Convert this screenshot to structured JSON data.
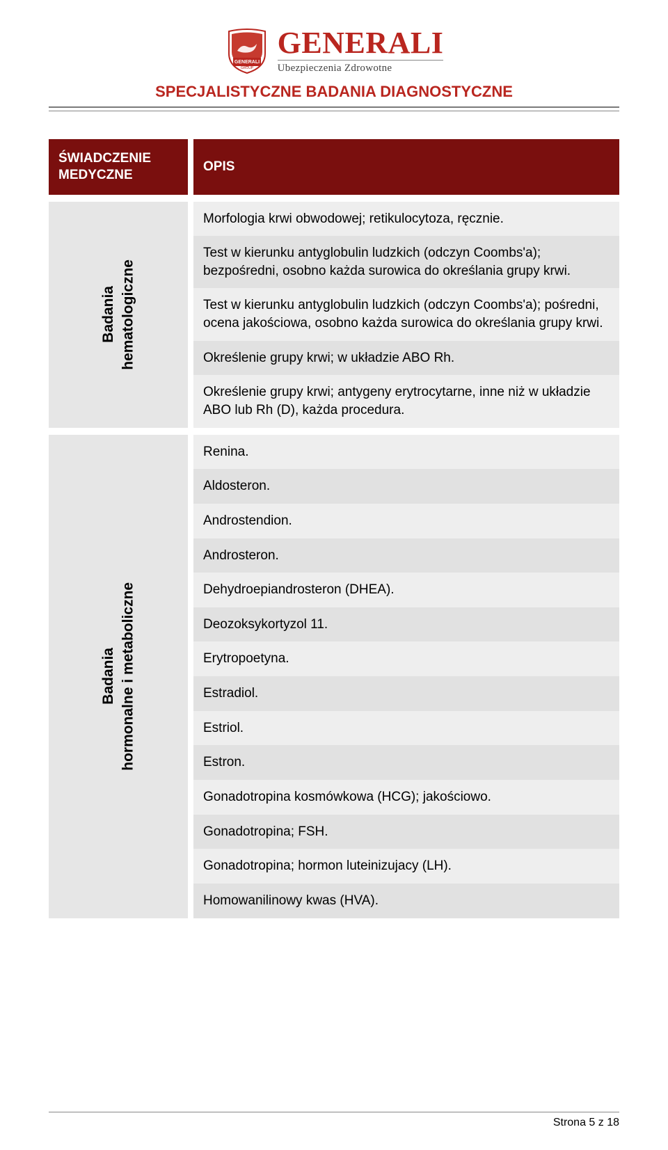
{
  "brand": {
    "wordmark": "GENERALI",
    "subtitle": "Ubezpieczenia Zdrowotne",
    "badge_text": "GENERALI",
    "badge_sub": "GROUP",
    "primary_color": "#b9261f",
    "header_bg": "#7a0f0e"
  },
  "doc_title": "SPECJALISTYCZNE BADANIA DIAGNOSTYCZNE",
  "headers": {
    "left": "ŚWIADCZENIE MEDYCZNE",
    "right": "OPIS"
  },
  "groups": [
    {
      "category": "Badania\nhematologiczne",
      "items": [
        "Morfologia krwi obwodowej; retikulocytoza, ręcznie.",
        "Test w kierunku antyglobulin ludzkich (odczyn Coombs'a); bezpośredni, osobno każda surowica do określania grupy krwi.",
        "Test w kierunku antyglobulin ludzkich (odczyn Coombs'a); pośredni, ocena jakościowa, osobno każda surowica do określania grupy krwi.",
        "Określenie grupy krwi; w układzie ABO Rh.",
        "Określenie grupy krwi; antygeny erytrocytarne, inne niż w układzie ABO lub Rh (D), każda procedura."
      ]
    },
    {
      "category": "Badania\nhormonalne i metaboliczne",
      "items": [
        "Renina.",
        "Aldosteron.",
        "Androstendion.",
        "Androsteron.",
        "Dehydroepiandrosteron (DHEA).",
        "Deozoksykortyzol 11.",
        "Erytropoetyna.",
        "Estradiol.",
        "Estriol.",
        "Estron.",
        "Gonadotropina kosmówkowa (HCG); jakościowo.",
        "Gonadotropina; FSH.",
        "Gonadotropina; hormon luteinizujacy (LH).",
        "Homowanilinowy kwas (HVA)."
      ]
    }
  ],
  "footer": {
    "text": "Strona 5 z 18"
  },
  "colors": {
    "row_even": "#eeeeee",
    "row_odd": "#e1e1e1",
    "cat_bg": "#e6e6e6",
    "rule": "#888888",
    "rule_top": "#7a7a7a"
  }
}
